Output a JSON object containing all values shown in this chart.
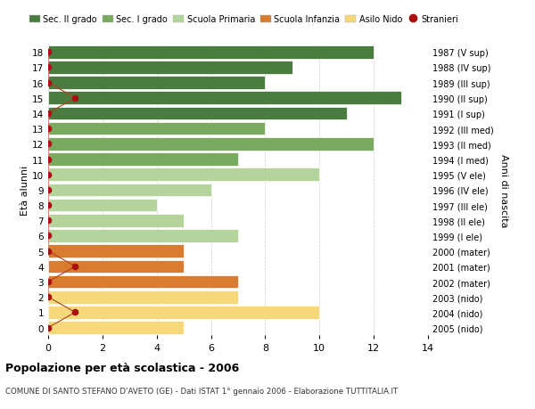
{
  "ages": [
    18,
    17,
    16,
    15,
    14,
    13,
    12,
    11,
    10,
    9,
    8,
    7,
    6,
    5,
    4,
    3,
    2,
    1,
    0
  ],
  "years": [
    "1987 (V sup)",
    "1988 (IV sup)",
    "1989 (III sup)",
    "1990 (II sup)",
    "1991 (I sup)",
    "1992 (III med)",
    "1993 (II med)",
    "1994 (I med)",
    "1995 (V ele)",
    "1996 (IV ele)",
    "1997 (III ele)",
    "1998 (II ele)",
    "1999 (I ele)",
    "2000 (mater)",
    "2001 (mater)",
    "2002 (mater)",
    "2003 (nido)",
    "2004 (nido)",
    "2005 (nido)"
  ],
  "values": [
    12,
    9,
    8,
    13,
    11,
    8,
    12,
    7,
    10,
    6,
    4,
    5,
    7,
    5,
    5,
    7,
    7,
    10,
    5
  ],
  "stranieri": [
    0,
    0,
    0,
    1,
    0,
    0,
    0,
    0,
    0,
    0,
    0,
    0,
    0,
    0,
    1,
    0,
    0,
    1,
    0
  ],
  "bar_colors": [
    "#4a7c3f",
    "#4a7c3f",
    "#4a7c3f",
    "#4a7c3f",
    "#4a7c3f",
    "#7aaa5f",
    "#7aaa5f",
    "#7aaa5f",
    "#b5d49b",
    "#b5d49b",
    "#b5d49b",
    "#b5d49b",
    "#b5d49b",
    "#d97c30",
    "#d97c30",
    "#d97c30",
    "#f5d87a",
    "#f5d87a",
    "#f5d87a"
  ],
  "legend_labels": [
    "Sec. II grado",
    "Sec. I grado",
    "Scuola Primaria",
    "Scuola Infanzia",
    "Asilo Nido",
    "Stranieri"
  ],
  "legend_colors_list": [
    "#4a7c3f",
    "#7aaa5f",
    "#b5d49b",
    "#d97c30",
    "#f5d87a",
    "#aa1111"
  ],
  "stranieri_color": "#aa1111",
  "stranieri_line_color": "#b04020",
  "title": "Popolazione per età scolastica - 2006",
  "subtitle": "COMUNE DI SANTO STEFANO D'AVETO (GE) - Dati ISTAT 1° gennaio 2006 - Elaborazione TUTTITALIA.IT",
  "ylabel_left": "Età alunni",
  "ylabel_right": "Anni di nascita",
  "xlim": [
    0,
    14
  ],
  "xticks": [
    0,
    2,
    4,
    6,
    8,
    10,
    12,
    14
  ],
  "bg_color": "#ffffff",
  "bar_edge_color": "#ffffff",
  "grid_color": "#cccccc"
}
